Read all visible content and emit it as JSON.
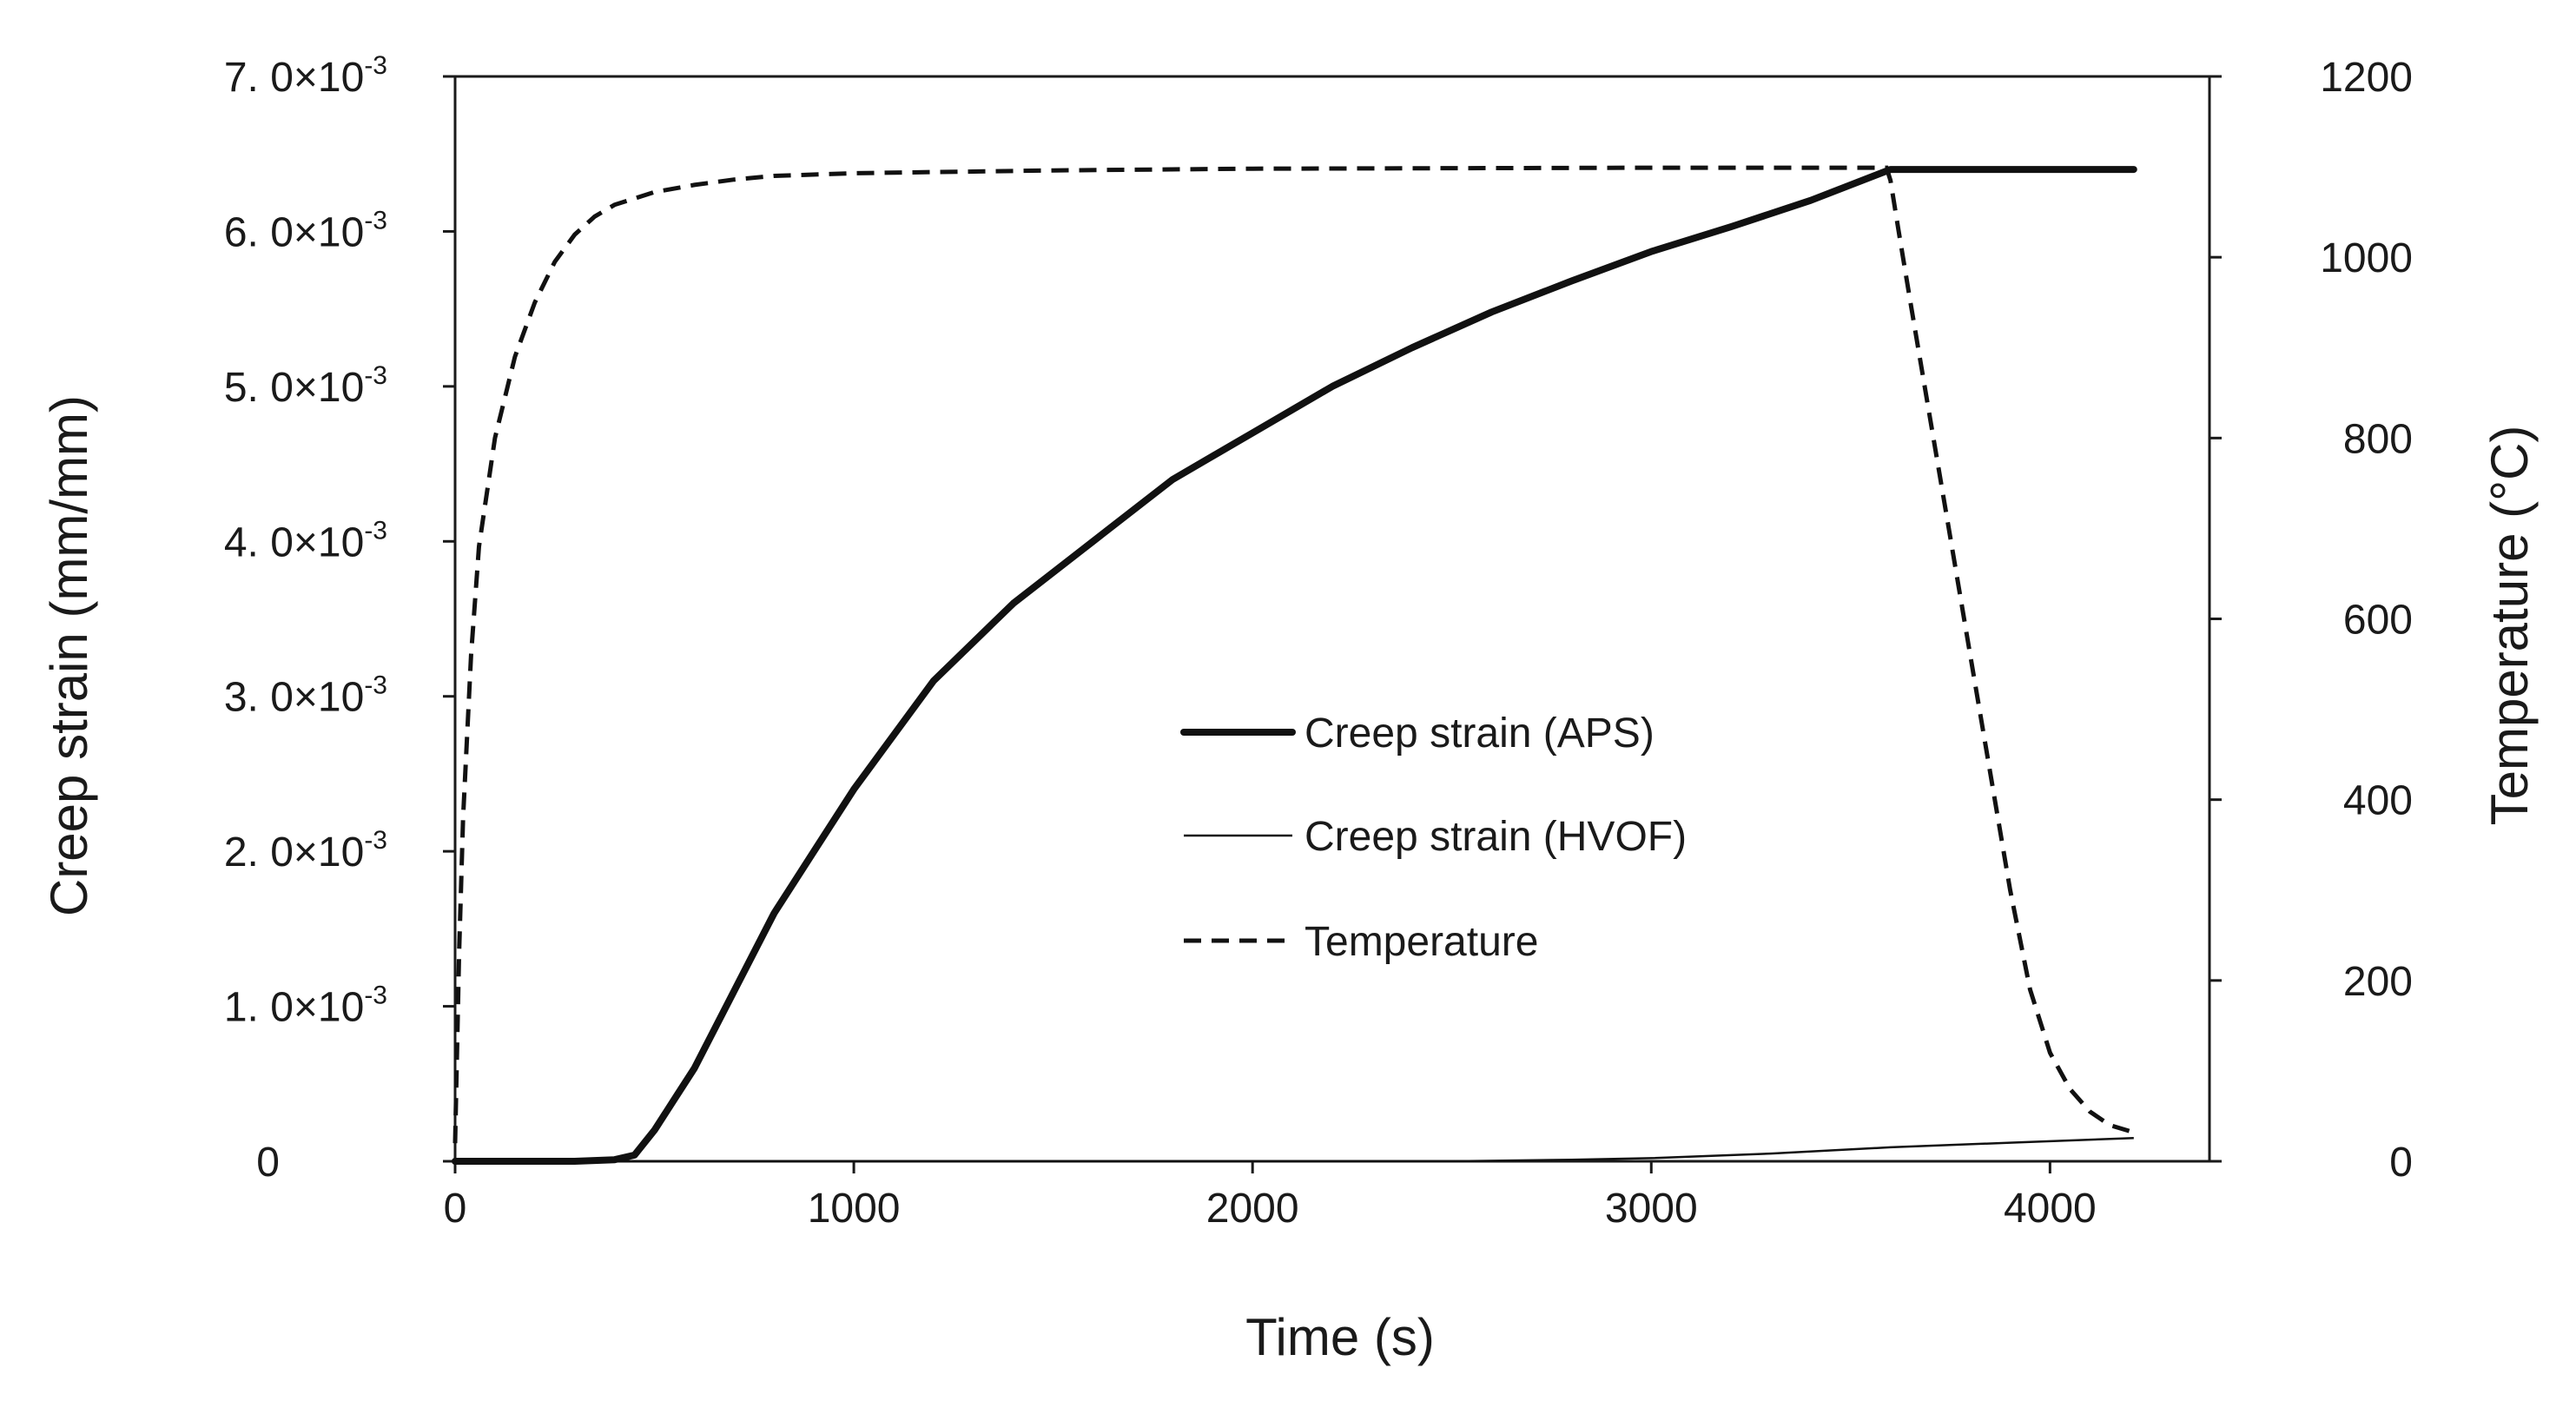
{
  "chart_data": {
    "type": "line",
    "xlabel": "Time (s)",
    "ylabel_left": "Creep strain (mm/mm)",
    "ylabel_right": "Temperature (°C)",
    "xlim": [
      0,
      4400
    ],
    "ylim_left": [
      0,
      0.007
    ],
    "ylim_right": [
      0,
      1200
    ],
    "x_ticks": [
      {
        "value": 0,
        "label": "0"
      },
      {
        "value": 1000,
        "label": "1000"
      },
      {
        "value": 2000,
        "label": "2000"
      },
      {
        "value": 3000,
        "label": "3000"
      },
      {
        "value": 4000,
        "label": "4000"
      }
    ],
    "y_left_ticks": [
      {
        "value": 0,
        "mant": "0",
        "mult": "",
        "exp": ""
      },
      {
        "value": 0.001,
        "mant": "1. 0",
        "mult": "×10",
        "exp": "-3"
      },
      {
        "value": 0.002,
        "mant": "2. 0",
        "mult": "×10",
        "exp": "-3"
      },
      {
        "value": 0.003,
        "mant": "3. 0",
        "mult": "×10",
        "exp": "-3"
      },
      {
        "value": 0.004,
        "mant": "4. 0",
        "mult": "×10",
        "exp": "-3"
      },
      {
        "value": 0.005,
        "mant": "5. 0",
        "mult": "×10",
        "exp": "-3"
      },
      {
        "value": 0.006,
        "mant": "6. 0",
        "mult": "×10",
        "exp": "-3"
      },
      {
        "value": 0.007,
        "mant": "7. 0",
        "mult": "×10",
        "exp": "-3"
      }
    ],
    "y_right_ticks": [
      {
        "value": 0,
        "label": "0"
      },
      {
        "value": 200,
        "label": "200"
      },
      {
        "value": 400,
        "label": "400"
      },
      {
        "value": 600,
        "label": "600"
      },
      {
        "value": 800,
        "label": "800"
      },
      {
        "value": 1000,
        "label": "1000"
      },
      {
        "value": 1200,
        "label": "1200"
      }
    ],
    "legend": [
      {
        "name": "Creep strain (APS)",
        "style": "thick-solid"
      },
      {
        "name": "Creep strain (HVOF)",
        "style": "thin-solid"
      },
      {
        "name": "Temperature",
        "style": "dashed"
      }
    ],
    "series": [
      {
        "name": "Creep strain (APS)",
        "axis": "left",
        "style": "thick-solid",
        "x": [
          0,
          300,
          400,
          450,
          500,
          550,
          600,
          700,
          800,
          900,
          1000,
          1200,
          1400,
          1600,
          1800,
          2000,
          2200,
          2400,
          2600,
          2800,
          3000,
          3200,
          3400,
          3600,
          4210
        ],
        "y": [
          0,
          0,
          1e-05,
          4e-05,
          0.0002,
          0.0004,
          0.0006,
          0.0011,
          0.0016,
          0.002,
          0.0024,
          0.0031,
          0.0036,
          0.004,
          0.0044,
          0.0047,
          0.005,
          0.00525,
          0.00548,
          0.00568,
          0.00587,
          0.00603,
          0.0062,
          0.0064,
          0.0064
        ]
      },
      {
        "name": "Creep strain (HVOF)",
        "axis": "left",
        "style": "thin-solid",
        "x": [
          0,
          2500,
          2800,
          3000,
          3300,
          3600,
          3900,
          4210
        ],
        "y": [
          0,
          0,
          1e-05,
          2e-05,
          5e-05,
          9e-05,
          0.00012,
          0.00015
        ]
      },
      {
        "name": "Temperature",
        "axis": "right",
        "style": "dashed",
        "x": [
          0,
          10,
          20,
          40,
          60,
          100,
          150,
          200,
          250,
          300,
          350,
          400,
          500,
          600,
          700,
          800,
          1000,
          1500,
          2000,
          3000,
          3590,
          3600,
          3620,
          3650,
          3700,
          3750,
          3800,
          3850,
          3900,
          3950,
          4000,
          4050,
          4100,
          4150,
          4210
        ],
        "y": [
          20,
          230,
          380,
          560,
          680,
          800,
          890,
          950,
          995,
          1025,
          1045,
          1058,
          1072,
          1080,
          1086,
          1090,
          1093,
          1096,
          1098,
          1099,
          1099,
          1085,
          1030,
          950,
          820,
          690,
          560,
          430,
          300,
          190,
          120,
          80,
          55,
          40,
          32
        ]
      }
    ]
  }
}
